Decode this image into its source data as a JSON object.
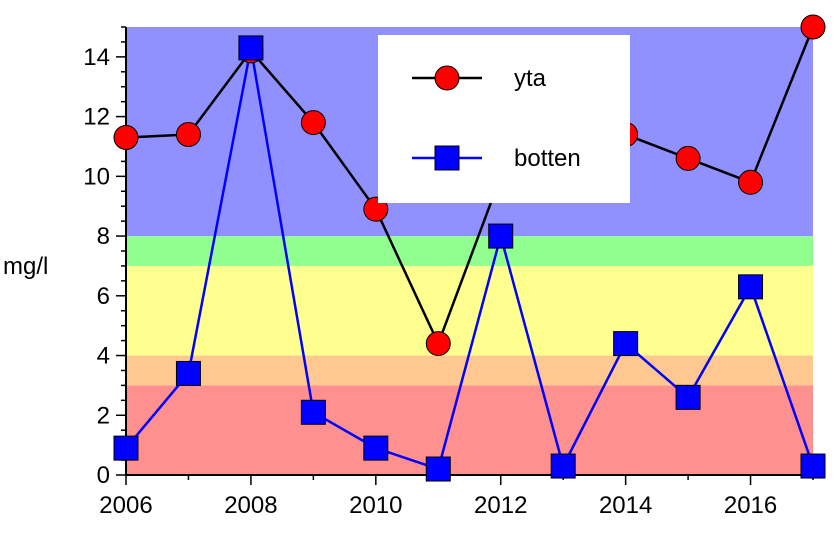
{
  "chart_data": {
    "type": "line",
    "title": "",
    "xlabel": "",
    "ylabel": "mg/l",
    "xlim": [
      2006,
      2017
    ],
    "ylim": [
      0,
      15
    ],
    "x": [
      2006,
      2007,
      2008,
      2009,
      2010,
      2011,
      2012,
      2013,
      2014,
      2015,
      2016,
      2017
    ],
    "x_ticks": [
      "2006",
      "2008",
      "2010",
      "2012",
      "2014",
      "2016"
    ],
    "y_ticks": [
      "0",
      "2",
      "4",
      "6",
      "8",
      "10",
      "12",
      "14"
    ],
    "series": [
      {
        "name": "yta",
        "color": "#ff0000",
        "line_color": "#000000",
        "marker": "circle",
        "values": [
          11.3,
          11.4,
          14.2,
          11.8,
          8.9,
          4.4,
          10.0,
          null,
          11.4,
          10.6,
          9.8,
          15.0
        ]
      },
      {
        "name": "botten",
        "color": "#0000ff",
        "line_color": "#0000ff",
        "marker": "square",
        "values": [
          0.9,
          3.4,
          14.3,
          2.1,
          0.9,
          0.2,
          8.0,
          0.3,
          4.4,
          2.6,
          6.3,
          0.3
        ]
      }
    ],
    "background_bands": [
      {
        "from": 0,
        "to": 3,
        "color": "#ff9090"
      },
      {
        "from": 3,
        "to": 4,
        "color": "#ffc890"
      },
      {
        "from": 4,
        "to": 7,
        "color": "#ffff90"
      },
      {
        "from": 7,
        "to": 8,
        "color": "#90ff90"
      },
      {
        "from": 8,
        "to": 15,
        "color": "#9090ff"
      }
    ],
    "legend_position": "top-center",
    "grid": false
  }
}
